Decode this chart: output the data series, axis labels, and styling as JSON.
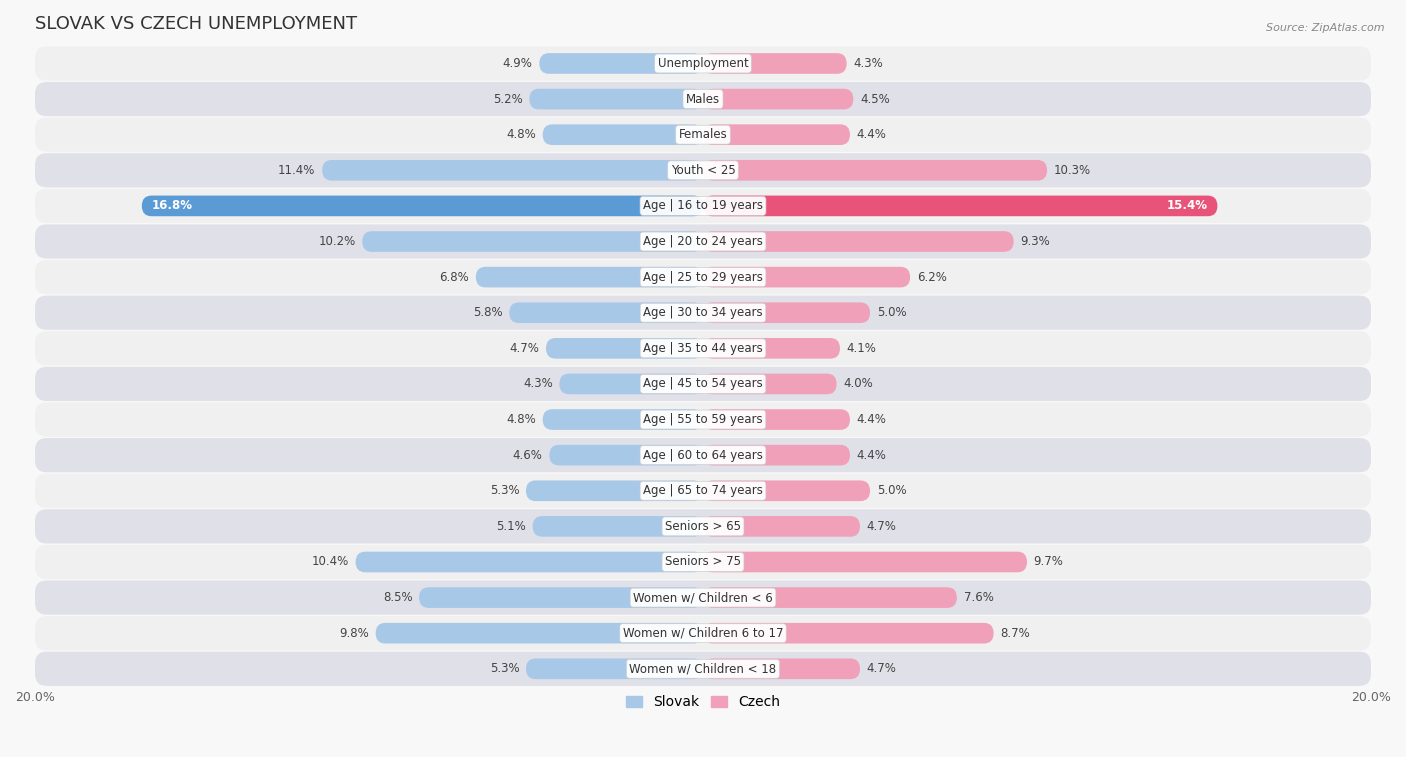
{
  "title": "SLOVAK VS CZECH UNEMPLOYMENT",
  "source": "Source: ZipAtlas.com",
  "categories": [
    "Unemployment",
    "Males",
    "Females",
    "Youth < 25",
    "Age | 16 to 19 years",
    "Age | 20 to 24 years",
    "Age | 25 to 29 years",
    "Age | 30 to 34 years",
    "Age | 35 to 44 years",
    "Age | 45 to 54 years",
    "Age | 55 to 59 years",
    "Age | 60 to 64 years",
    "Age | 65 to 74 years",
    "Seniors > 65",
    "Seniors > 75",
    "Women w/ Children < 6",
    "Women w/ Children 6 to 17",
    "Women w/ Children < 18"
  ],
  "slovak_values": [
    4.9,
    5.2,
    4.8,
    11.4,
    16.8,
    10.2,
    6.8,
    5.8,
    4.7,
    4.3,
    4.8,
    4.6,
    5.3,
    5.1,
    10.4,
    8.5,
    9.8,
    5.3
  ],
  "czech_values": [
    4.3,
    4.5,
    4.4,
    10.3,
    15.4,
    9.3,
    6.2,
    5.0,
    4.1,
    4.0,
    4.4,
    4.4,
    5.0,
    4.7,
    9.7,
    7.6,
    8.7,
    4.7
  ],
  "slovak_color": "#a8c8e8",
  "czech_color": "#f0a0b8",
  "highlight_slovak_color": "#5b9bd5",
  "highlight_czech_color": "#e8537a",
  "highlight_row": 4,
  "x_max": 20.0,
  "bar_height": 0.58,
  "row_colors": [
    "#f0f0f0",
    "#e0e0e8"
  ],
  "title_fontsize": 13,
  "label_fontsize": 8.5,
  "tick_fontsize": 9,
  "legend_fontsize": 10,
  "bg_color": "#f8f8f8"
}
